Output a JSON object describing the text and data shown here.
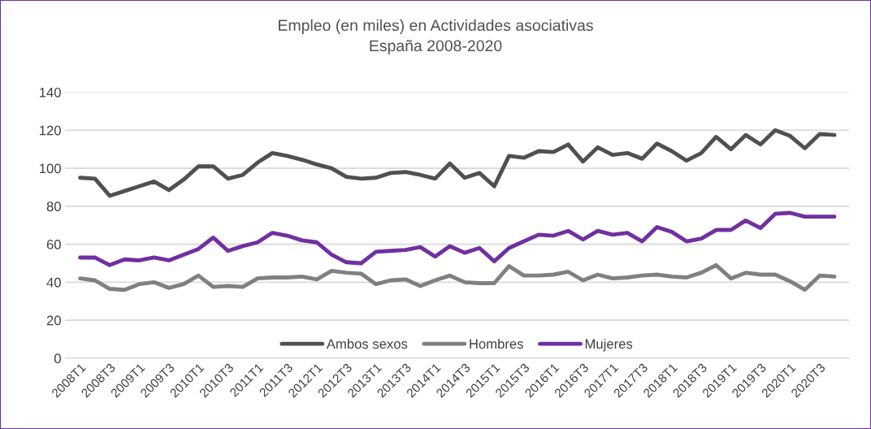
{
  "chart_data": {
    "type": "line",
    "title": "Empleo (en miles) en Actividades asociativas\nEspaña 2008-2020",
    "categories": [
      "2008T1",
      null,
      "2008T3",
      null,
      "2009T1",
      null,
      "2009T3",
      null,
      "2010T1",
      null,
      "2010T3",
      null,
      "2011T1",
      null,
      "2011T3",
      null,
      "2012T1",
      null,
      "2012T3",
      null,
      "2013T1",
      null,
      "2013T3",
      null,
      "2014T1",
      null,
      "2014T3",
      null,
      "2015T1",
      null,
      "2015T3",
      null,
      "2016T1",
      null,
      "2016T3",
      null,
      "2017T1",
      null,
      "2017T3",
      null,
      "2018T1",
      null,
      "2018T3",
      null,
      "2019T1",
      null,
      "2019T3",
      null,
      "2020T1",
      null,
      "2020T3",
      null
    ],
    "series": [
      {
        "name": "Ambos sexos",
        "color": "#505050",
        "values": [
          95,
          94.5,
          85.5,
          88,
          90.5,
          93,
          88.5,
          94,
          101,
          101,
          94.5,
          96.5,
          103,
          108,
          106.5,
          104.5,
          102,
          100,
          95.5,
          94.5,
          95,
          97.5,
          98,
          96.5,
          94.5,
          102.5,
          95,
          97.5,
          90.5,
          106.5,
          105.5,
          109,
          108.5,
          112.5,
          103.5,
          111,
          107,
          108,
          105,
          113,
          109,
          104,
          108,
          116.5,
          110,
          117.5,
          112.5,
          120,
          117,
          110.5,
          118,
          117.5
        ]
      },
      {
        "name": "Hombres",
        "color": "#808080",
        "values": [
          42,
          41,
          36.5,
          36,
          39,
          40,
          37,
          39,
          43.5,
          37.5,
          38,
          37.5,
          42,
          42.5,
          42.5,
          43,
          41.5,
          46,
          45,
          44.5,
          39,
          41,
          41.5,
          38,
          41,
          43.5,
          40,
          39.5,
          39.5,
          48.5,
          43.5,
          43.5,
          44,
          45.5,
          41,
          44,
          42,
          42.5,
          43.5,
          44,
          43,
          42.5,
          45,
          49,
          42,
          45,
          44,
          44,
          40.5,
          36,
          43.5,
          43
        ]
      },
      {
        "name": "Mujeres",
        "color": "#7030a0",
        "values": [
          53,
          53,
          49,
          52,
          51.5,
          53,
          51.5,
          54.5,
          57.5,
          63.5,
          56.5,
          59,
          61,
          66,
          64.5,
          62,
          61,
          54.5,
          50.5,
          50,
          56,
          56.5,
          57,
          58.5,
          53.5,
          59,
          55.5,
          58,
          51,
          58,
          61.5,
          65,
          64.5,
          67,
          62.5,
          67,
          65,
          66,
          61.5,
          69,
          66.5,
          61.5,
          63,
          67.5,
          67.5,
          72.5,
          68.5,
          76,
          76.5,
          74.5,
          74.5,
          74.5
        ]
      }
    ],
    "ylim": [
      0,
      140
    ],
    "yticks": [
      0,
      20,
      40,
      60,
      80,
      100,
      120,
      140
    ],
    "grid": "y",
    "legend": "bottom",
    "marker": "none",
    "line_style": "solid"
  }
}
